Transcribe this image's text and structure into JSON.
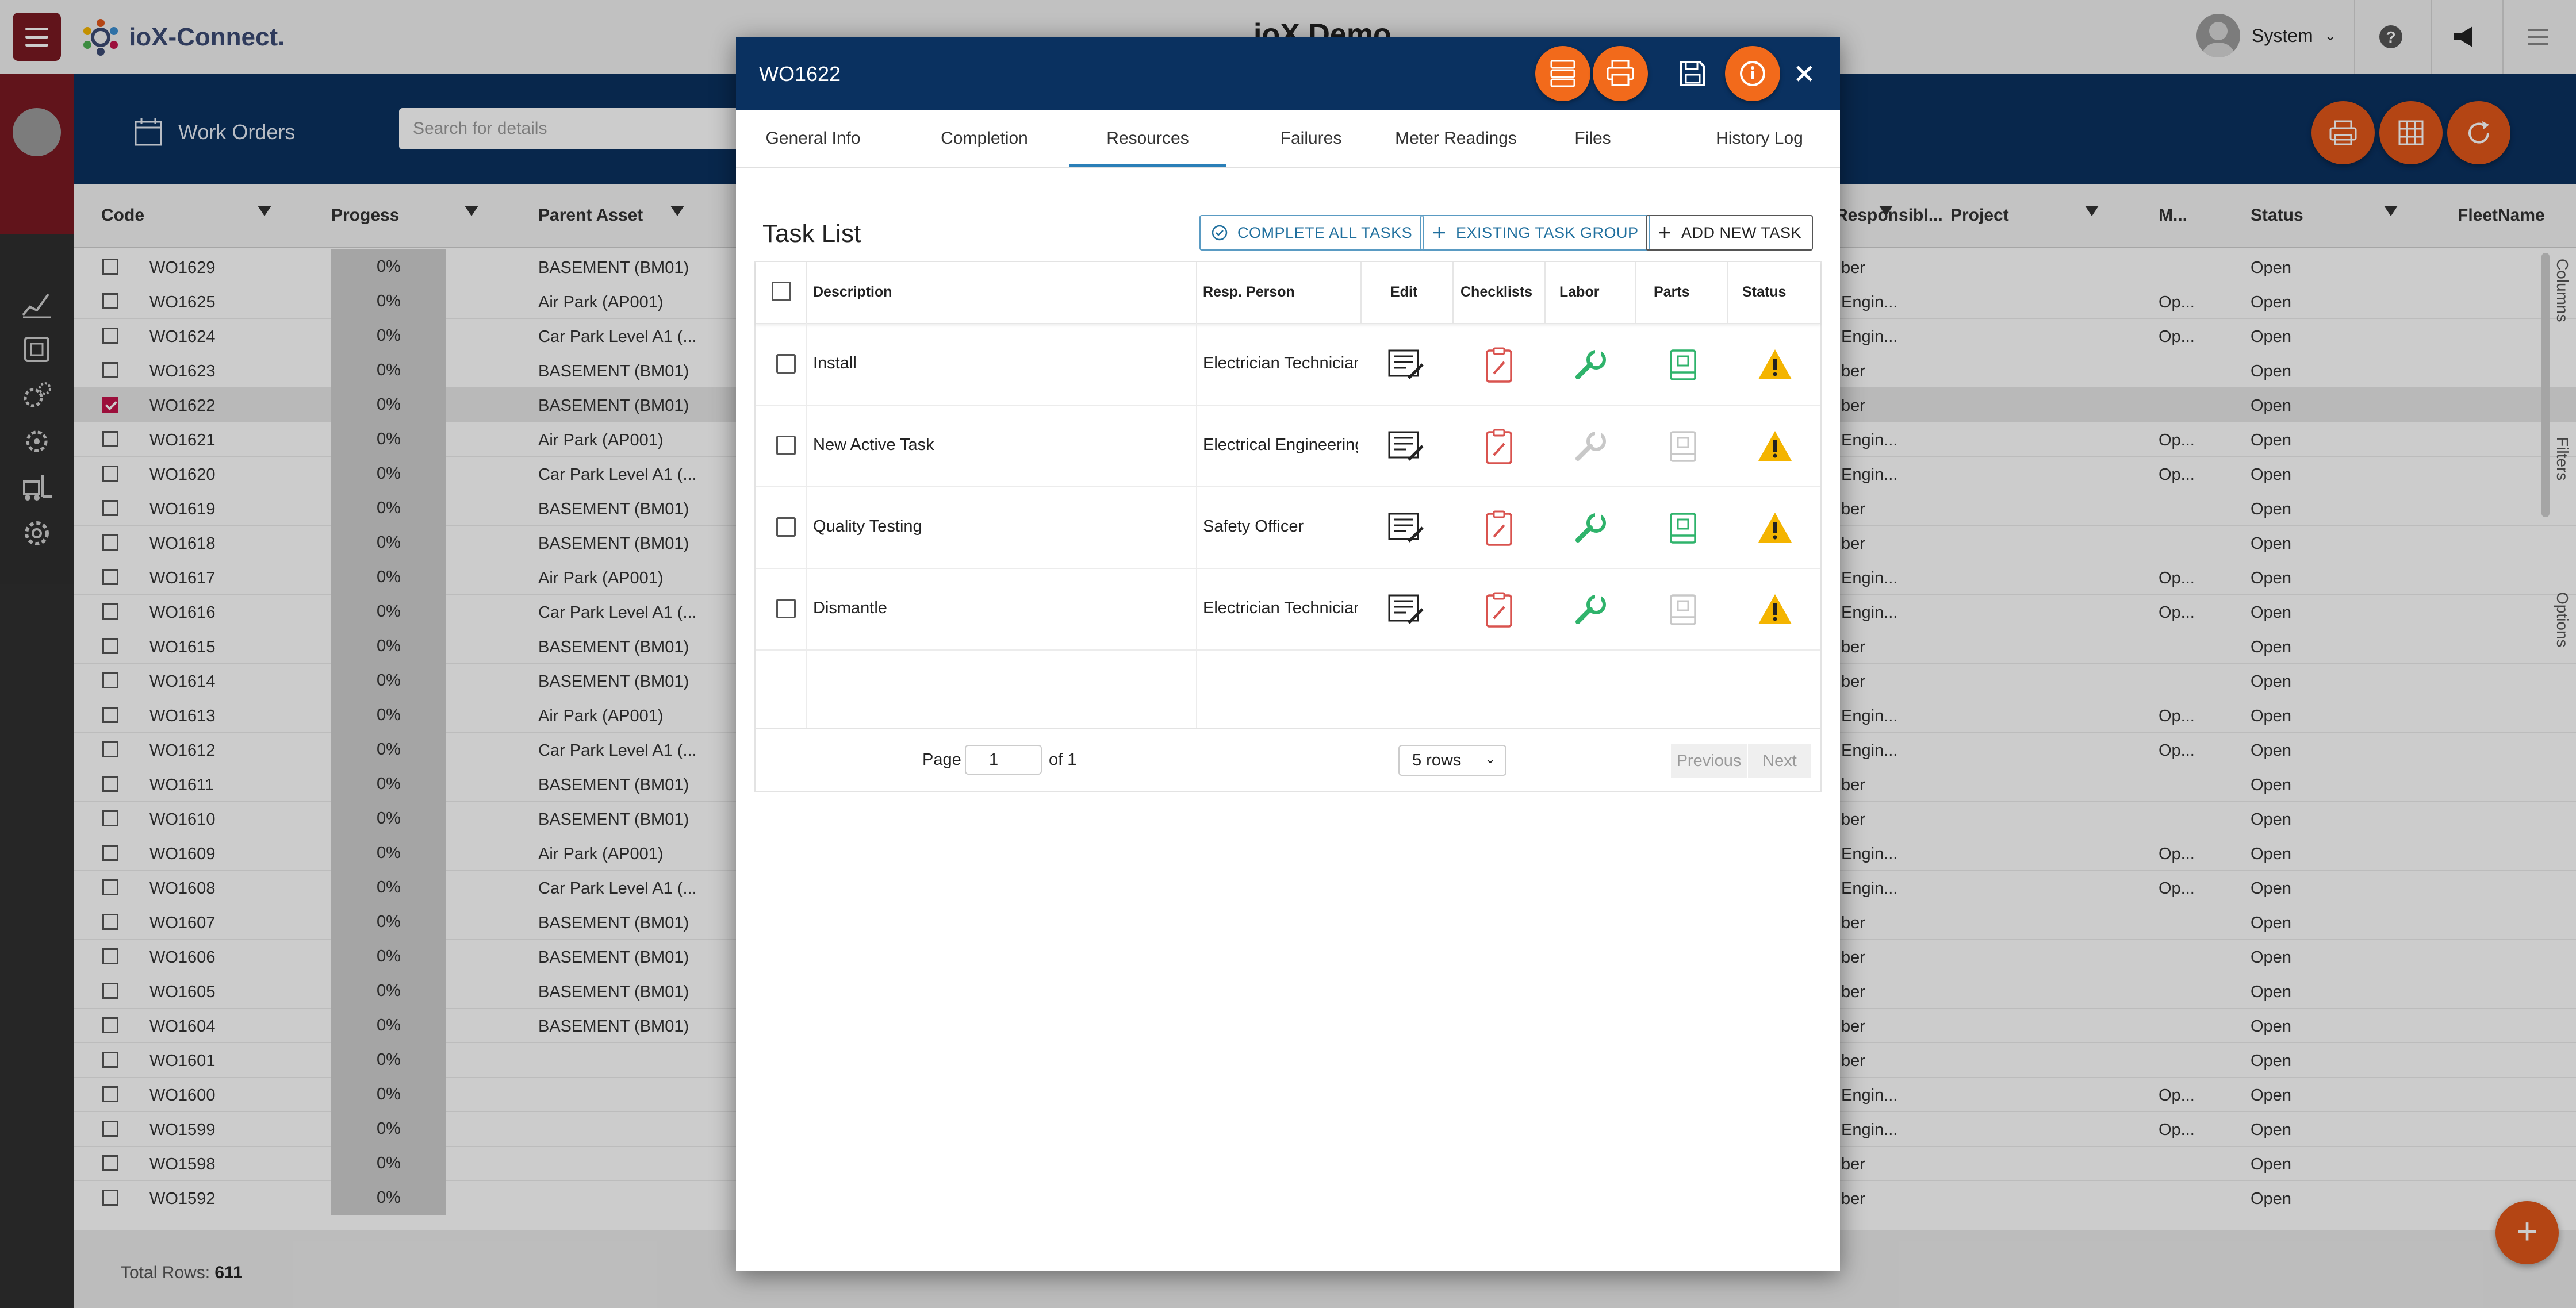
{
  "app": {
    "logo_text": "ioX-Connect.",
    "title": "ioX Demo",
    "user_name": "System"
  },
  "band": {
    "section_label": "Work Orders",
    "search_placeholder": "Search for details"
  },
  "grid": {
    "columns": [
      "Code",
      "Progess",
      "Parent Asset",
      "Responsibl...",
      "Project",
      "M...",
      "Status",
      "FleetName"
    ],
    "rows": [
      {
        "code": "WO1629",
        "progress": "0%",
        "asset": "BASEMENT (BM01)",
        "resp": "ber",
        "m": "",
        "status": "Open"
      },
      {
        "code": "WO1625",
        "progress": "0%",
        "asset": "Air Park (AP001)",
        "resp": "Engin...",
        "m": "Op...",
        "status": "Open"
      },
      {
        "code": "WO1624",
        "progress": "0%",
        "asset": "Car Park Level A1 (...",
        "resp": "Engin...",
        "m": "Op...",
        "status": "Open"
      },
      {
        "code": "WO1623",
        "progress": "0%",
        "asset": "BASEMENT (BM01)",
        "resp": "ber",
        "m": "",
        "status": "Open"
      },
      {
        "code": "WO1622",
        "progress": "0%",
        "asset": "BASEMENT (BM01)",
        "resp": "ber",
        "m": "",
        "status": "Open",
        "selected": true
      },
      {
        "code": "WO1621",
        "progress": "0%",
        "asset": "Air Park (AP001)",
        "resp": "Engin...",
        "m": "Op...",
        "status": "Open"
      },
      {
        "code": "WO1620",
        "progress": "0%",
        "asset": "Car Park Level A1 (...",
        "resp": "Engin...",
        "m": "Op...",
        "status": "Open"
      },
      {
        "code": "WO1619",
        "progress": "0%",
        "asset": "BASEMENT (BM01)",
        "resp": "ber",
        "m": "",
        "status": "Open"
      },
      {
        "code": "WO1618",
        "progress": "0%",
        "asset": "BASEMENT (BM01)",
        "resp": "ber",
        "m": "",
        "status": "Open"
      },
      {
        "code": "WO1617",
        "progress": "0%",
        "asset": "Air Park (AP001)",
        "resp": "Engin...",
        "m": "Op...",
        "status": "Open"
      },
      {
        "code": "WO1616",
        "progress": "0%",
        "asset": "Car Park Level A1 (...",
        "resp": "Engin...",
        "m": "Op...",
        "status": "Open"
      },
      {
        "code": "WO1615",
        "progress": "0%",
        "asset": "BASEMENT (BM01)",
        "resp": "ber",
        "m": "",
        "status": "Open"
      },
      {
        "code": "WO1614",
        "progress": "0%",
        "asset": "BASEMENT (BM01)",
        "resp": "ber",
        "m": "",
        "status": "Open"
      },
      {
        "code": "WO1613",
        "progress": "0%",
        "asset": "Air Park (AP001)",
        "resp": "Engin...",
        "m": "Op...",
        "status": "Open"
      },
      {
        "code": "WO1612",
        "progress": "0%",
        "asset": "Car Park Level A1 (...",
        "resp": "Engin...",
        "m": "Op...",
        "status": "Open"
      },
      {
        "code": "WO1611",
        "progress": "0%",
        "asset": "BASEMENT (BM01)",
        "resp": "ber",
        "m": "",
        "status": "Open"
      },
      {
        "code": "WO1610",
        "progress": "0%",
        "asset": "BASEMENT (BM01)",
        "resp": "ber",
        "m": "",
        "status": "Open"
      },
      {
        "code": "WO1609",
        "progress": "0%",
        "asset": "Air Park (AP001)",
        "resp": "Engin...",
        "m": "Op...",
        "status": "Open"
      },
      {
        "code": "WO1608",
        "progress": "0%",
        "asset": "Car Park Level A1 (...",
        "resp": "Engin...",
        "m": "Op...",
        "status": "Open"
      },
      {
        "code": "WO1607",
        "progress": "0%",
        "asset": "BASEMENT (BM01)",
        "resp": "ber",
        "m": "",
        "status": "Open"
      },
      {
        "code": "WO1606",
        "progress": "0%",
        "asset": "BASEMENT (BM01)",
        "resp": "ber",
        "m": "",
        "status": "Open"
      },
      {
        "code": "WO1605",
        "progress": "0%",
        "asset": "BASEMENT (BM01)",
        "resp": "ber",
        "m": "",
        "status": "Open"
      },
      {
        "code": "WO1604",
        "progress": "0%",
        "asset": "BASEMENT (BM01)",
        "resp": "ber",
        "m": "",
        "status": "Open"
      },
      {
        "code": "WO1601",
        "progress": "0%",
        "asset": "",
        "resp": "ber",
        "m": "",
        "status": "Open"
      },
      {
        "code": "WO1600",
        "progress": "0%",
        "asset": "",
        "resp": "Engin...",
        "m": "Op...",
        "status": "Open"
      },
      {
        "code": "WO1599",
        "progress": "0%",
        "asset": "",
        "resp": "Engin...",
        "m": "Op...",
        "status": "Open"
      },
      {
        "code": "WO1598",
        "progress": "0%",
        "asset": "",
        "resp": "ber",
        "m": "",
        "status": "Open"
      },
      {
        "code": "WO1592",
        "progress": "0%",
        "asset": "",
        "resp": "ber",
        "m": "",
        "status": "Open"
      }
    ],
    "total_label": "Total Rows:",
    "total_value": "611",
    "side_tabs": [
      "Columns",
      "Filters",
      "Options"
    ]
  },
  "modal": {
    "title": "WO1622",
    "tabs": [
      "General Info",
      "Completion",
      "Resources",
      "Failures",
      "Meter Readings",
      "Files",
      "History Log"
    ],
    "active_tab": "Resources",
    "task_list_title": "Task List",
    "buttons": {
      "complete_all": "COMPLETE ALL TASKS",
      "existing_group": "EXISTING TASK GROUP",
      "add_new": "ADD NEW TASK"
    },
    "columns": {
      "description": "Description",
      "resp_person": "Resp. Person",
      "edit": "Edit",
      "checklists": "Checklists",
      "labor": "Labor",
      "parts": "Parts",
      "status": "Status"
    },
    "tasks": [
      {
        "description": "Install",
        "resp": "Electrician Technician",
        "labor_active": true,
        "parts_active": true
      },
      {
        "description": "New Active Task",
        "resp": "Electrical Engineering",
        "labor_active": false,
        "parts_active": false
      },
      {
        "description": "Quality Testing",
        "resp": "Safety Officer",
        "labor_active": true,
        "parts_active": true
      },
      {
        "description": "Dismantle",
        "resp": "Electrician Technician",
        "labor_active": true,
        "parts_active": false
      }
    ],
    "pager": {
      "page_label": "Page",
      "page_value": "1",
      "of_label": "of 1",
      "rows_value": "5 rows",
      "previous": "Previous",
      "next": "Next"
    }
  },
  "colors": {
    "navy": "#0a3160",
    "orange": "#f26a1b",
    "maroon": "#7a1a22",
    "green_icon": "#2fb36b",
    "red_icon": "#d9534f",
    "warning": "#f4b400"
  }
}
